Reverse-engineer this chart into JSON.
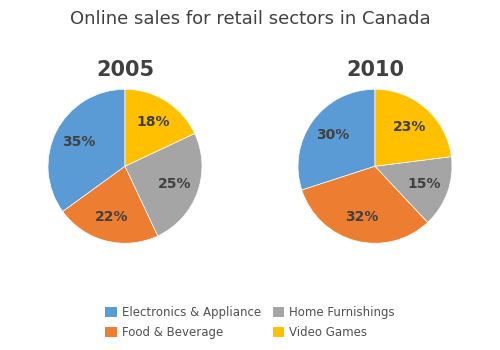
{
  "title": "Online sales for retail sectors in Canada",
  "title_fontsize": 13,
  "year_labels": [
    "2005",
    "2010"
  ],
  "year_fontsize": 15,
  "categories": [
    "Electronics & Appliance",
    "Food & Beverage",
    "Home Furnishings",
    "Video Games"
  ],
  "colors": [
    "#5B9BD5",
    "#ED7D31",
    "#A5A5A5",
    "#FFC000"
  ],
  "values_2005": [
    35,
    22,
    25,
    18
  ],
  "values_2010": [
    30,
    32,
    15,
    23
  ],
  "legend_labels": [
    "Electronics & Appliance",
    "Food & Beverage",
    "Home Furnishings",
    "Video Games"
  ],
  "pct_fontsize": 10,
  "background_color": "#FFFFFF",
  "startangle_2005": 90,
  "startangle_2010": 90
}
